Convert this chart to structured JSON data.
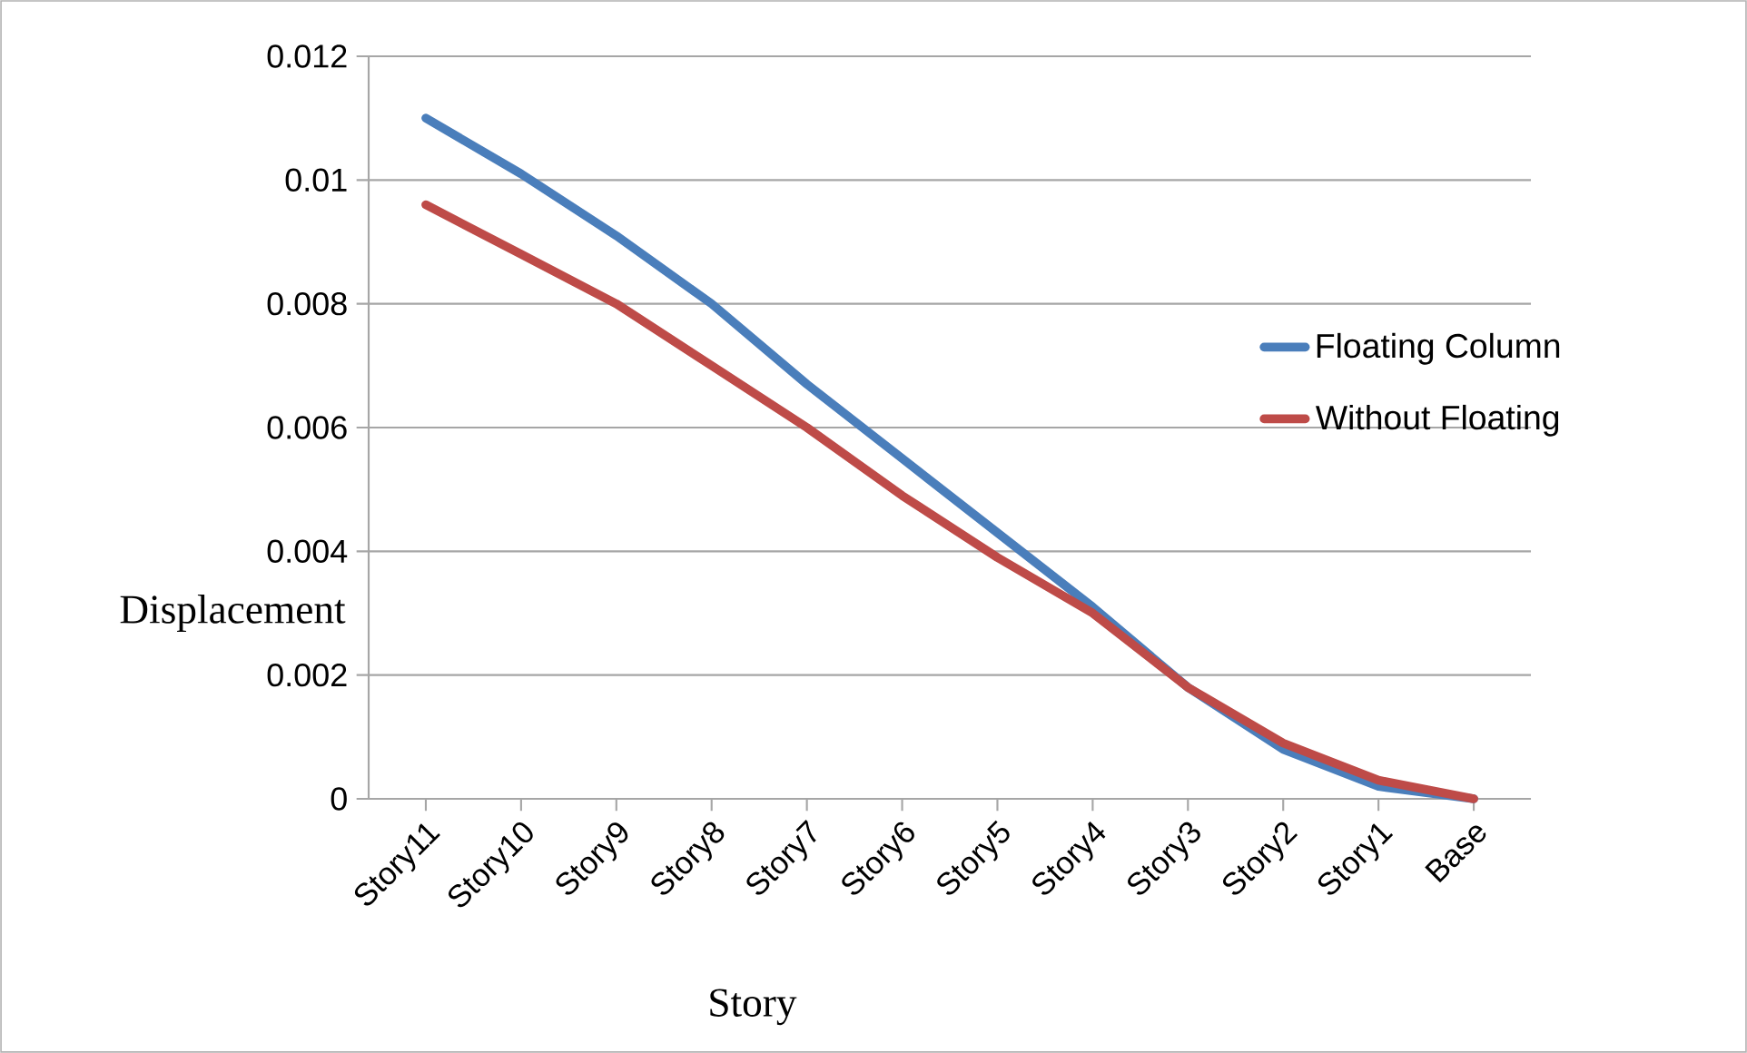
{
  "chart_data": {
    "type": "line",
    "xlabel": "Story",
    "ylabel": "Displacement",
    "categories": [
      "Story11",
      "Story10",
      "Story9",
      "Story8",
      "Story7",
      "Story6",
      "Story5",
      "Story4",
      "Story3",
      "Story2",
      "Story1",
      "Base"
    ],
    "series": [
      {
        "name": "Floating Column",
        "color": "#4a7ebb",
        "values": [
          0.011,
          0.0101,
          0.0091,
          0.008,
          0.0067,
          0.0055,
          0.0043,
          0.0031,
          0.0018,
          0.0008,
          0.0002,
          0
        ]
      },
      {
        "name": "Without Floating",
        "color": "#be4b48",
        "values": [
          0.0096,
          0.0088,
          0.008,
          0.007,
          0.006,
          0.0049,
          0.0039,
          0.003,
          0.0018,
          0.0009,
          0.0003,
          0
        ]
      }
    ],
    "ylim": [
      0,
      0.012
    ],
    "yticks": [
      0,
      0.002,
      0.004,
      0.006,
      0.008,
      0.01,
      0.012
    ],
    "grid": "y",
    "legend": "right",
    "marker": "none",
    "line_style": "solid"
  }
}
